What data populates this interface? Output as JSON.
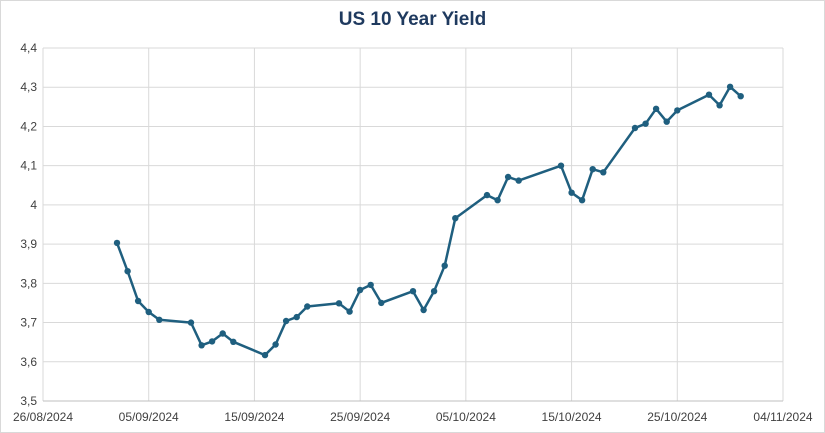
{
  "chart_data": {
    "type": "line",
    "title": "US 10 Year Yield",
    "xlabel": "",
    "ylabel": "",
    "x_axis_type": "date",
    "xlim": [
      "2024-08-26",
      "2024-11-04"
    ],
    "ylim": [
      3.5,
      4.4
    ],
    "x_ticks": [
      "2024-08-26",
      "2024-09-05",
      "2024-09-15",
      "2024-09-25",
      "2024-10-05",
      "2024-10-15",
      "2024-10-25",
      "2024-11-04"
    ],
    "x_tick_labels": [
      "26/08/2024",
      "05/09/2024",
      "15/09/2024",
      "25/09/2024",
      "05/10/2024",
      "15/10/2024",
      "25/10/2024",
      "04/11/2024"
    ],
    "y_ticks": [
      3.5,
      3.6,
      3.7,
      3.8,
      3.9,
      4.0,
      4.1,
      4.2,
      4.3,
      4.4
    ],
    "y_tick_labels": [
      "3,5",
      "3,6",
      "3,7",
      "3,8",
      "3,9",
      "4",
      "4,1",
      "4,2",
      "4,3",
      "4,4"
    ],
    "grid": true,
    "legend": "none",
    "series_color": "#1f5f7f",
    "series": [
      {
        "x": [
          "2024-09-02",
          "2024-09-03",
          "2024-09-04",
          "2024-09-05",
          "2024-09-06",
          "2024-09-09",
          "2024-09-10",
          "2024-09-11",
          "2024-09-12",
          "2024-09-13",
          "2024-09-16",
          "2024-09-17",
          "2024-09-18",
          "2024-09-19",
          "2024-09-20",
          "2024-09-23",
          "2024-09-24",
          "2024-09-25",
          "2024-09-26",
          "2024-09-27",
          "2024-09-30",
          "2024-10-01",
          "2024-10-02",
          "2024-10-03",
          "2024-10-04",
          "2024-10-07",
          "2024-10-08",
          "2024-10-09",
          "2024-10-10",
          "2024-10-14",
          "2024-10-15",
          "2024-10-16",
          "2024-10-17",
          "2024-10-18",
          "2024-10-21",
          "2024-10-22",
          "2024-10-23",
          "2024-10-24",
          "2024-10-25",
          "2024-10-28",
          "2024-10-29",
          "2024-10-30",
          "2024-10-31"
        ],
        "values": [
          3.903,
          3.831,
          3.755,
          3.727,
          3.707,
          3.7,
          3.642,
          3.652,
          3.672,
          3.651,
          3.617,
          3.644,
          3.704,
          3.714,
          3.741,
          3.749,
          3.728,
          3.783,
          3.796,
          3.75,
          3.78,
          3.732,
          3.78,
          3.845,
          3.966,
          4.025,
          4.012,
          4.071,
          4.062,
          4.1,
          4.031,
          4.012,
          4.091,
          4.083,
          4.196,
          4.207,
          4.245,
          4.212,
          4.241,
          4.281,
          4.254,
          4.301,
          4.277
        ]
      }
    ]
  }
}
